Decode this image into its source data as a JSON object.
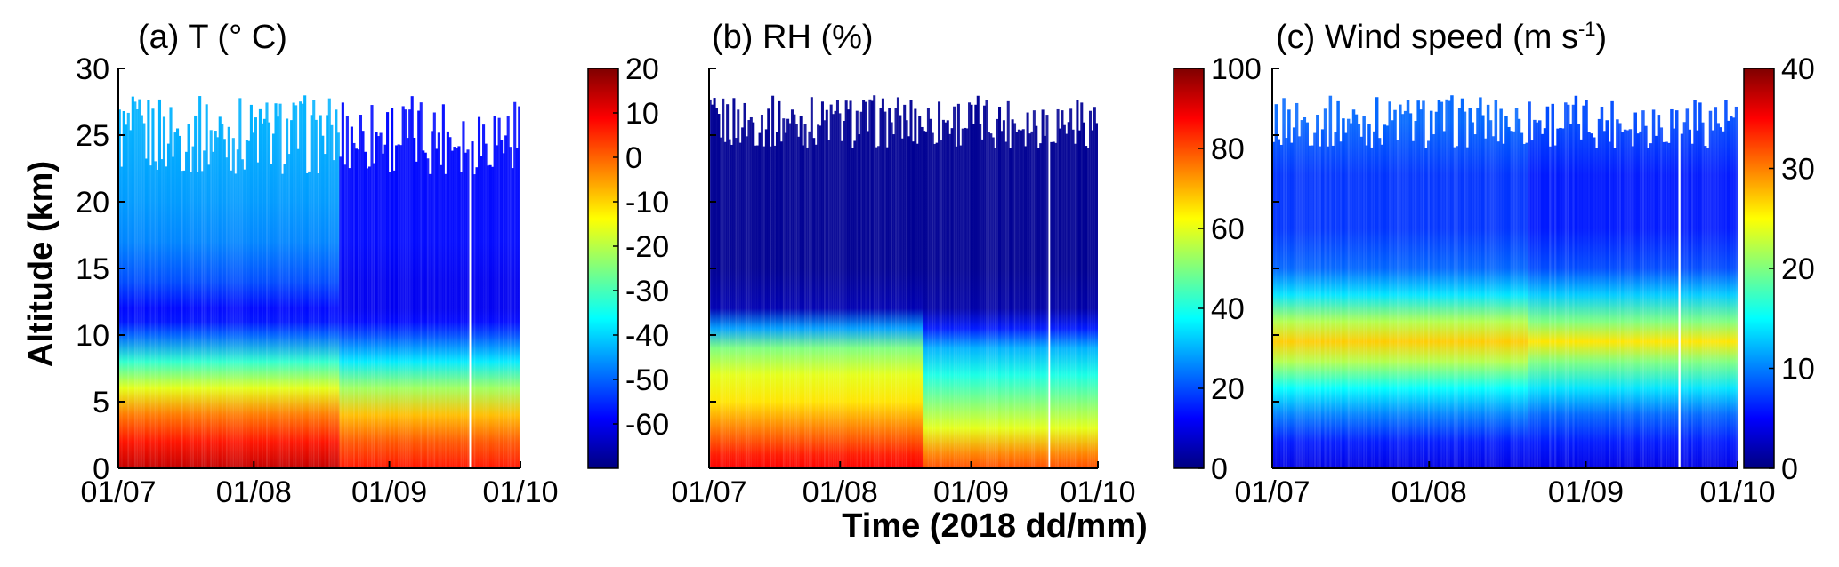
{
  "figure": {
    "ylabel": "Altitude (km)",
    "xlabel": "Time (2018 dd/mm)"
  },
  "chart_data": [
    {
      "type": "heatmap",
      "title_prefix": "(a) T (",
      "title_unit": "° C)",
      "title_sup": "",
      "title_end": "",
      "xlabel": "Time (2018 dd/mm)",
      "ylabel": "Altitude (km)",
      "x_ticks": [
        "01/07",
        "01/08",
        "01/09",
        "01/10"
      ],
      "xlim": [
        "2018-07-01",
        "2018-10-01"
      ],
      "ylim": [
        0,
        30
      ],
      "y_ticks": [
        0,
        5,
        10,
        15,
        20,
        25,
        30
      ],
      "y_tick_labels": [
        "0",
        "5",
        "10",
        "15",
        "20",
        "25",
        "30"
      ],
      "colorbar": {
        "range": [
          -70,
          20
        ],
        "ticks": [
          -60,
          -50,
          -40,
          -30,
          -20,
          -10,
          0,
          10,
          20
        ],
        "tick_labels": [
          "-60",
          "-50",
          "-40",
          "-30",
          "-20",
          "-10",
          "0",
          "10",
          "20"
        ],
        "colormap": "jet"
      },
      "data_gap": [
        "2018-09-19",
        "2018-09-20"
      ],
      "profile_top_km": {
        "min": 22,
        "max": 28
      },
      "profile": {
        "altitude_km": [
          0,
          2,
          4,
          6,
          8,
          10,
          11,
          12,
          14,
          17,
          20,
          23,
          26
        ],
        "value_early": [
          14,
          7,
          -2,
          -16,
          -32,
          -50,
          -57,
          -58,
          -52,
          -47,
          -45,
          -44,
          -43
        ],
        "value_late": [
          7,
          1,
          -8,
          -22,
          -38,
          -52,
          -58,
          -60,
          -60,
          -58,
          -58,
          -58,
          -58
        ]
      }
    },
    {
      "type": "heatmap",
      "title_prefix": "(b) RH (%)",
      "title_unit": "",
      "title_sup": "",
      "title_end": "",
      "xlabel": "Time (2018 dd/mm)",
      "ylabel": "Altitude (km)",
      "x_ticks": [
        "01/07",
        "01/08",
        "01/09",
        "01/10"
      ],
      "xlim": [
        "2018-07-01",
        "2018-10-01"
      ],
      "ylim": [
        0,
        30
      ],
      "y_ticks": [
        0,
        5,
        10,
        15,
        20,
        25,
        30
      ],
      "y_tick_labels": [],
      "colorbar": {
        "range": [
          0,
          100
        ],
        "ticks": [
          0,
          20,
          40,
          60,
          80,
          100
        ],
        "tick_labels": [
          "0",
          "20",
          "40",
          "60",
          "80",
          "100"
        ],
        "colormap": "jet"
      },
      "data_gap": [
        "2018-09-19",
        "2018-09-20"
      ],
      "profile_top_km": {
        "min": 24,
        "max": 28
      },
      "profile": {
        "altitude_km": [
          0,
          1,
          3,
          5,
          7,
          9,
          10.5,
          12,
          15,
          20,
          26
        ],
        "value_early": [
          88,
          85,
          75,
          65,
          60,
          50,
          28,
          5,
          2,
          2,
          2
        ],
        "value_late": [
          80,
          75,
          60,
          50,
          40,
          30,
          15,
          4,
          2,
          2,
          2
        ]
      }
    },
    {
      "type": "heatmap",
      "title_prefix": "(c) Wind speed (m s",
      "title_unit": "",
      "title_sup": "-1",
      "title_end": ")",
      "xlabel": "Time (2018 dd/mm)",
      "ylabel": "Altitude (km)",
      "x_ticks": [
        "01/07",
        "01/08",
        "01/09",
        "01/10"
      ],
      "xlim": [
        "2018-07-01",
        "2018-10-01"
      ],
      "ylim": [
        0,
        30
      ],
      "y_ticks": [
        0,
        5,
        10,
        15,
        20,
        25,
        30
      ],
      "y_tick_labels": [],
      "colorbar": {
        "range": [
          0,
          40
        ],
        "ticks": [
          0,
          10,
          20,
          30,
          40
        ],
        "tick_labels": [
          "0",
          "10",
          "20",
          "30",
          "40"
        ],
        "colormap": "jet"
      },
      "data_gap": [
        "2018-09-19",
        "2018-09-20"
      ],
      "profile_top_km": {
        "min": 24,
        "max": 28
      },
      "profile": {
        "altitude_km": [
          0,
          2,
          4,
          6,
          8,
          9.5,
          11,
          13,
          15,
          18,
          22,
          26
        ],
        "value_early": [
          4,
          6,
          10,
          15,
          22,
          27,
          22,
          14,
          9,
          7,
          7,
          9
        ],
        "value_late": [
          4,
          6,
          9,
          14,
          20,
          26,
          20,
          13,
          8,
          6,
          6,
          8
        ]
      }
    }
  ]
}
